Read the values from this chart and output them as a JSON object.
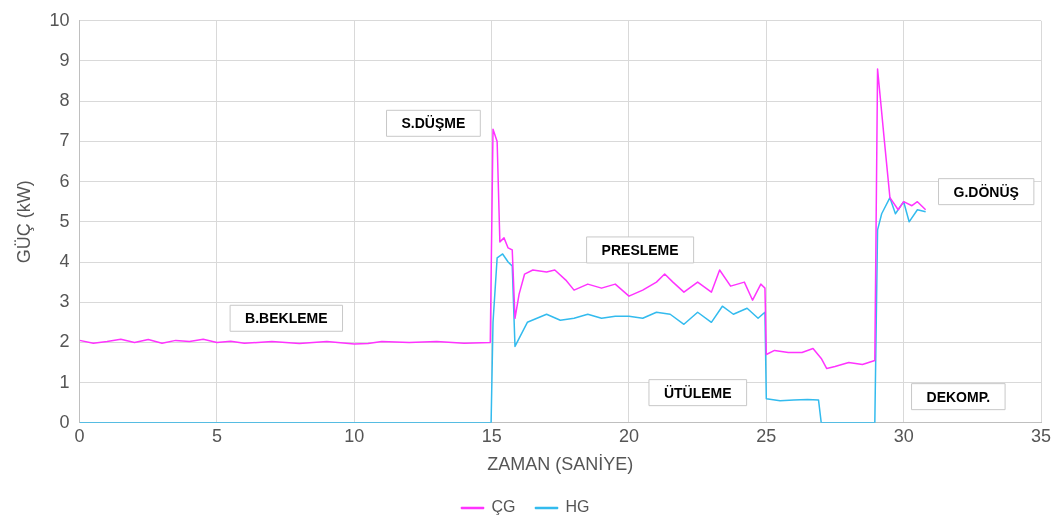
{
  "chart_data": {
    "type": "line",
    "xlabel": "ZAMAN (SANİYE)",
    "ylabel": "GÜÇ (kW)",
    "xlim": [
      0,
      35
    ],
    "xticks": [
      0,
      5,
      10,
      15,
      20,
      25,
      30,
      35
    ],
    "ylim": [
      0,
      10
    ],
    "yticks": [
      0,
      1,
      2,
      3,
      4,
      5,
      6,
      7,
      8,
      9,
      10
    ],
    "grid": true,
    "legend": "bottom",
    "marker": "none",
    "line_style": "solid",
    "series": [
      {
        "name": "ÇG",
        "color": "#ff33ff",
        "x": [
          0,
          0.5,
          1,
          1.5,
          2,
          2.5,
          3,
          3.5,
          4,
          4.5,
          5,
          5.5,
          6,
          7,
          8,
          9,
          10,
          10.5,
          11,
          12,
          13,
          14,
          14.95,
          15.05,
          15.2,
          15.3,
          15.45,
          15.6,
          15.75,
          15.85,
          16,
          16.2,
          16.5,
          17,
          17.3,
          17.7,
          18,
          18.5,
          19,
          19.5,
          20,
          20.5,
          21,
          21.3,
          21.6,
          22,
          22.5,
          23,
          23.3,
          23.7,
          24.2,
          24.5,
          24.8,
          24.95,
          25,
          25.3,
          25.8,
          26.3,
          26.7,
          27,
          27.2,
          27.5,
          28,
          28.5,
          28.95,
          29.05,
          29.3,
          29.5,
          29.8,
          30,
          30.3,
          30.5,
          30.8
        ],
        "values": [
          2.05,
          1.98,
          2.02,
          2.08,
          2,
          2.07,
          1.98,
          2.05,
          2.02,
          2.08,
          2,
          2.03,
          1.98,
          2.02,
          1.97,
          2.02,
          1.96,
          1.97,
          2.02,
          2,
          2.02,
          1.98,
          2,
          7.3,
          7,
          4.5,
          4.6,
          4.35,
          4.3,
          2.6,
          3.2,
          3.7,
          3.8,
          3.75,
          3.8,
          3.55,
          3.3,
          3.45,
          3.35,
          3.45,
          3.15,
          3.3,
          3.5,
          3.7,
          3.5,
          3.25,
          3.5,
          3.25,
          3.8,
          3.4,
          3.5,
          3.05,
          3.45,
          3.35,
          1.7,
          1.8,
          1.75,
          1.75,
          1.85,
          1.6,
          1.35,
          1.4,
          1.5,
          1.45,
          1.55,
          8.8,
          7,
          5.6,
          5.3,
          5.5,
          5.4,
          5.5,
          5.3
        ]
      },
      {
        "name": "HG",
        "color": "#33bbee",
        "x": [
          0,
          14.98,
          15.05,
          15.2,
          15.4,
          15.6,
          15.75,
          15.85,
          16,
          16.3,
          17,
          17.5,
          18,
          18.5,
          19,
          19.5,
          20,
          20.5,
          21,
          21.5,
          22,
          22.5,
          23,
          23.4,
          23.8,
          24.3,
          24.7,
          24.95,
          25,
          25.5,
          26,
          26.5,
          26.9,
          27,
          28.95,
          29.05,
          29.2,
          29.5,
          29.7,
          30,
          30.2,
          30.5,
          30.8
        ],
        "values": [
          0,
          0,
          2.5,
          4.1,
          4.2,
          4,
          3.9,
          1.9,
          2.1,
          2.5,
          2.7,
          2.55,
          2.6,
          2.7,
          2.6,
          2.65,
          2.65,
          2.6,
          2.75,
          2.7,
          2.45,
          2.75,
          2.5,
          2.9,
          2.7,
          2.85,
          2.6,
          2.75,
          0.6,
          0.55,
          0.57,
          0.58,
          0.57,
          0,
          0,
          4.8,
          5.2,
          5.6,
          5.2,
          5.5,
          5,
          5.3,
          5.25
        ]
      }
    ],
    "annotations": [
      "B.BEKLEME",
      "S.DÜŞME",
      "PRESLEME",
      "ÜTÜLEME",
      "DEKOMP.",
      "G.DÖNÜŞ"
    ]
  }
}
